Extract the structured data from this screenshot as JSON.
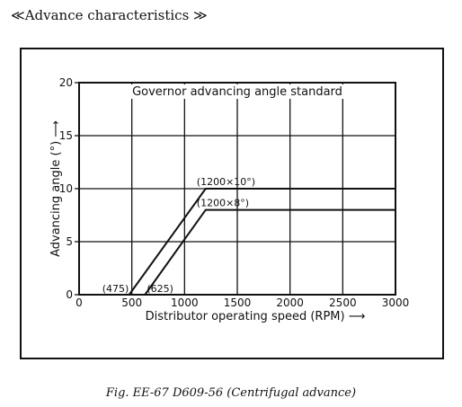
{
  "heading": "≪Advance characteristics ≫",
  "caption": "Fig. EE-67 D609-56 (Centrifugal advance)",
  "chart_data": {
    "type": "line",
    "title": "Governor advancing angle standard",
    "xlabel": "Distributor operating speed (RPM) ⟶",
    "ylabel": "Advancing angle (°) ⟶",
    "xlim": [
      0,
      3000
    ],
    "ylim": [
      0,
      20
    ],
    "x_ticks": [
      "0",
      "500",
      "1000",
      "1500",
      "2000",
      "2500",
      "3000"
    ],
    "y_ticks": [
      "0",
      "5",
      "10",
      "15",
      "20"
    ],
    "grid": true,
    "series": [
      {
        "points": [
          [
            475,
            0
          ],
          [
            1200,
            10
          ],
          [
            3000,
            10
          ]
        ]
      },
      {
        "points": [
          [
            625,
            0
          ],
          [
            1200,
            8
          ],
          [
            3000,
            8
          ]
        ]
      }
    ],
    "annotations": [
      {
        "text": "(475)",
        "x": 475,
        "y": 0
      },
      {
        "text": "(625)",
        "x": 625,
        "y": 0
      },
      {
        "text": "(1200×10°)",
        "x": 1200,
        "y": 10
      },
      {
        "text": "(1200×8°)",
        "x": 1200,
        "y": 8
      }
    ]
  }
}
